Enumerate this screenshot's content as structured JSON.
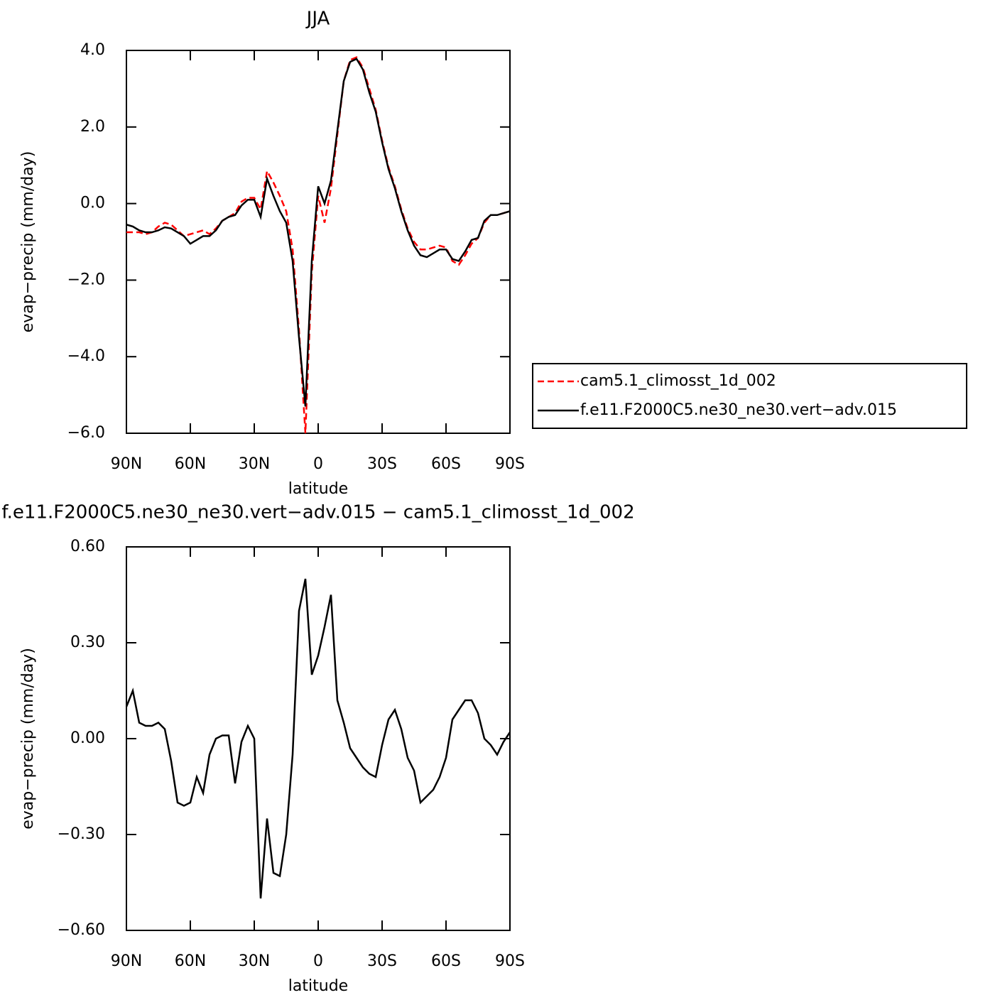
{
  "chart_data": [
    {
      "type": "line",
      "title": "JJA",
      "xlabel": "latitude",
      "ylabel": "evap−precip (mm/day)",
      "x": [
        90,
        87,
        84,
        81,
        78,
        75,
        72,
        69,
        66,
        63,
        60,
        57,
        54,
        51,
        48,
        45,
        42,
        39,
        36,
        33,
        30,
        27,
        24,
        21,
        18,
        15,
        12,
        9,
        6,
        3,
        0,
        -3,
        -6,
        -9,
        -12,
        -15,
        -18,
        -21,
        -24,
        -27,
        -30,
        -33,
        -36,
        -39,
        -42,
        -45,
        -48,
        -51,
        -54,
        -57,
        -60,
        -63,
        -66,
        -69,
        -72,
        -75,
        -78,
        -81,
        -84,
        -87,
        -90
      ],
      "xlim": [
        90,
        -90
      ],
      "xticks": [
        {
          "value": 90,
          "label": "90N"
        },
        {
          "value": 60,
          "label": "60N"
        },
        {
          "value": 30,
          "label": "30N"
        },
        0,
        {
          "value": -30,
          "label": "30S"
        },
        {
          "value": -60,
          "label": "60S"
        },
        {
          "value": -90,
          "label": "90S"
        }
      ],
      "ylim": [
        -6,
        4
      ],
      "yticks": [
        {
          "value": -6,
          "label": "−6.0"
        },
        {
          "value": -4,
          "label": "−4.0"
        },
        {
          "value": -2,
          "label": "−2.0"
        },
        {
          "value": 0,
          "label": "0.0"
        },
        {
          "value": 2,
          "label": "2.0"
        },
        {
          "value": 4,
          "label": "4.0"
        }
      ],
      "legend": "right",
      "series": [
        {
          "name": "cam5.1_climosst_1d_002",
          "color": "#ff0000",
          "line_style": "dashed",
          "values": [
            -0.75,
            -0.75,
            -0.75,
            -0.8,
            -0.75,
            -0.6,
            -0.5,
            -0.55,
            -0.7,
            -0.85,
            -0.8,
            -0.75,
            -0.7,
            -0.8,
            -0.65,
            -0.45,
            -0.35,
            -0.25,
            0.05,
            0.15,
            0.15,
            -0.15,
            0.85,
            0.55,
            0.2,
            -0.2,
            -1.2,
            -3.3,
            -6.0,
            -1.8,
            0.2,
            -0.5,
            0.4,
            1.8,
            3.2,
            3.75,
            3.82,
            3.55,
            3.0,
            2.45,
            1.65,
            0.95,
            0.45,
            -0.15,
            -0.65,
            -1.0,
            -1.2,
            -1.2,
            -1.15,
            -1.1,
            -1.15,
            -1.5,
            -1.6,
            -1.35,
            -1.05,
            -0.9,
            -0.5,
            -0.3,
            -0.3,
            -0.25,
            -0.2
          ]
        },
        {
          "name": "f.e11.F2000C5.ne30_ne30.vert−adv.015",
          "color": "#000000",
          "line_style": "solid",
          "values": [
            -0.55,
            -0.6,
            -0.7,
            -0.75,
            -0.75,
            -0.7,
            -0.62,
            -0.65,
            -0.75,
            -0.85,
            -1.05,
            -0.95,
            -0.85,
            -0.85,
            -0.7,
            -0.45,
            -0.35,
            -0.3,
            -0.05,
            0.1,
            0.1,
            -0.35,
            0.65,
            0.2,
            -0.2,
            -0.5,
            -1.5,
            -3.5,
            -5.3,
            -1.5,
            0.45,
            0.0,
            0.6,
            1.9,
            3.2,
            3.7,
            3.78,
            3.5,
            2.9,
            2.4,
            1.6,
            0.9,
            0.4,
            -0.2,
            -0.7,
            -1.1,
            -1.35,
            -1.4,
            -1.3,
            -1.2,
            -1.2,
            -1.45,
            -1.5,
            -1.25,
            -0.95,
            -0.9,
            -0.45,
            -0.3,
            -0.3,
            -0.25,
            -0.2
          ]
        }
      ]
    },
    {
      "type": "line",
      "title": "f.e11.F2000C5.ne30_ne30.vert−adv.015 − cam5.1_climosst_1d_002",
      "xlabel": "latitude",
      "ylabel": "evap−precip (mm/day)",
      "x": [
        90,
        87,
        84,
        81,
        78,
        75,
        72,
        69,
        66,
        63,
        60,
        57,
        54,
        51,
        48,
        45,
        42,
        39,
        36,
        33,
        30,
        27,
        24,
        21,
        18,
        15,
        12,
        9,
        6,
        3,
        0,
        -3,
        -6,
        -9,
        -12,
        -15,
        -18,
        -21,
        -24,
        -27,
        -30,
        -33,
        -36,
        -39,
        -42,
        -45,
        -48,
        -51,
        -54,
        -57,
        -60,
        -63,
        -66,
        -69,
        -72,
        -75,
        -78,
        -81,
        -84,
        -87,
        -90
      ],
      "xlim": [
        90,
        -90
      ],
      "xticks": [
        {
          "value": 90,
          "label": "90N"
        },
        {
          "value": 60,
          "label": "60N"
        },
        {
          "value": 30,
          "label": "30N"
        },
        0,
        {
          "value": -30,
          "label": "30S"
        },
        {
          "value": -60,
          "label": "60S"
        },
        {
          "value": -90,
          "label": "90S"
        }
      ],
      "ylim": [
        -0.6,
        0.6
      ],
      "yticks": [
        {
          "value": -0.6,
          "label": "−0.60"
        },
        {
          "value": -0.3,
          "label": "−0.30"
        },
        {
          "value": 0,
          "label": "0.00"
        },
        {
          "value": 0.3,
          "label": "0.30"
        },
        {
          "value": 0.6,
          "label": "0.60"
        }
      ],
      "series": [
        {
          "color": "#000000",
          "line_style": "solid",
          "values": [
            0.1,
            0.15,
            0.05,
            0.04,
            0.04,
            0.05,
            0.03,
            -0.07,
            -0.2,
            -0.21,
            -0.2,
            -0.12,
            -0.17,
            -0.05,
            0.0,
            0.01,
            0.01,
            -0.14,
            -0.01,
            0.04,
            0.0,
            -0.5,
            -0.25,
            -0.42,
            -0.43,
            -0.3,
            -0.05,
            0.4,
            0.5,
            0.2,
            0.26,
            0.35,
            0.45,
            0.12,
            0.05,
            -0.03,
            -0.06,
            -0.09,
            -0.11,
            -0.12,
            -0.02,
            0.06,
            0.09,
            0.03,
            -0.06,
            -0.1,
            -0.2,
            -0.18,
            -0.16,
            -0.12,
            -0.06,
            0.06,
            0.09,
            0.12,
            0.12,
            0.08,
            0.0,
            -0.02,
            -0.05,
            -0.01,
            0.02
          ]
        }
      ]
    }
  ]
}
